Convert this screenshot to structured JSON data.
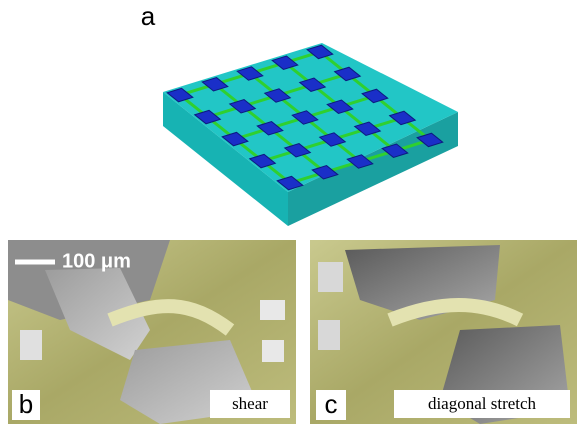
{
  "panels": [
    {
      "label": "a"
    },
    {
      "label": "b",
      "scale_bar": "100 μm",
      "caption": "shear"
    },
    {
      "label": "c",
      "caption": "diagonal stretch"
    }
  ]
}
